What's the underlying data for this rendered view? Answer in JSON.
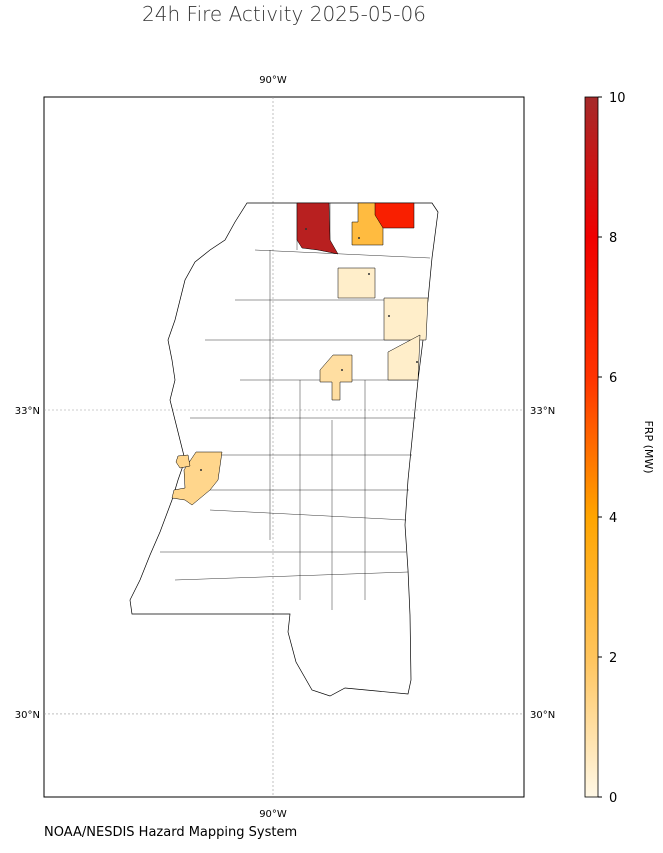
{
  "title": "24h Fire Activity 2025-05-06",
  "footer": "NOAA/NESDIS Hazard Mapping System",
  "grid": {
    "lon": [
      {
        "value": -90,
        "label": "90°W"
      }
    ],
    "lat": [
      {
        "value": 33,
        "label": "33°N"
      },
      {
        "value": 30,
        "label": "30°N"
      }
    ]
  },
  "colorbar": {
    "label": "FRP (MW)",
    "range": [
      0,
      10
    ],
    "ticks": [
      0,
      2,
      4,
      6,
      8,
      10
    ],
    "colormap": [
      {
        "value": 0,
        "color": "#fff8e6"
      },
      {
        "value": 2,
        "color": "#ffc45c"
      },
      {
        "value": 4,
        "color": "#ffa500"
      },
      {
        "value": 6,
        "color": "#ff3300"
      },
      {
        "value": 8,
        "color": "#f00000"
      },
      {
        "value": 10,
        "color": "#a52a2a"
      }
    ]
  },
  "fires": [
    {
      "frp": 9.5
    },
    {
      "frp": 2.6
    },
    {
      "frp": 6.8
    },
    {
      "frp": 0.4
    },
    {
      "frp": 0.4
    },
    {
      "frp": 0.4
    },
    {
      "frp": 1.0
    },
    {
      "frp": 1.3
    },
    {
      "frp": 1.3
    }
  ]
}
